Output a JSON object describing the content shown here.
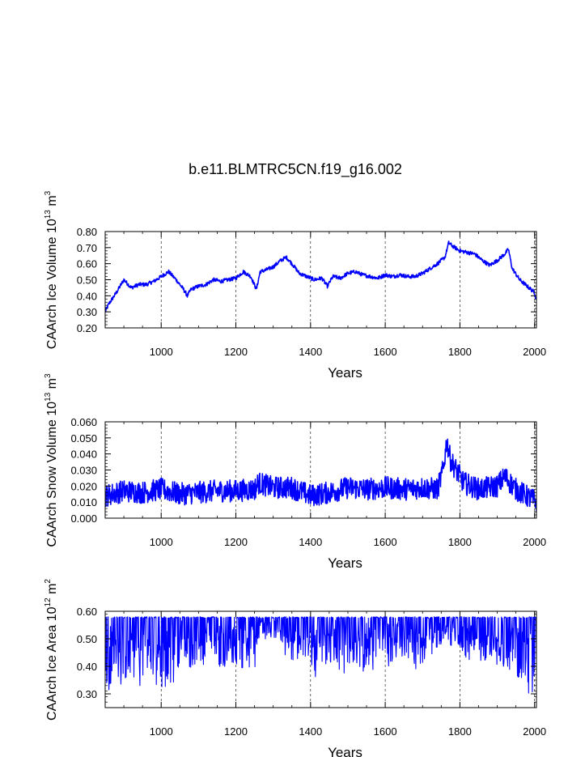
{
  "title": "b.e11.BLMTRC5CN.f19_g16.002",
  "colors": {
    "series": "#0000ff",
    "axis": "#000000",
    "grid": "#000000"
  },
  "chart_data": [
    {
      "type": "line",
      "title": "b.e11.BLMTRC5CN.f19_g16.002",
      "xlabel": "Years",
      "ylabel": {
        "text": "CAArch Ice Volume 10",
        "exponent": "13",
        "unit": " m",
        "unit_exponent": "3"
      },
      "xlim": [
        850,
        2005
      ],
      "ylim": [
        0.2,
        0.8
      ],
      "xticks": [
        "1000",
        "1200",
        "1400",
        "1600",
        "1800",
        "2000"
      ],
      "xtick_values": [
        1000,
        1200,
        1400,
        1600,
        1800,
        2000
      ],
      "yticks": [
        "0.20",
        "0.30",
        "0.40",
        "0.50",
        "0.60",
        "0.70",
        "0.80"
      ],
      "ytick_values": [
        0.2,
        0.3,
        0.4,
        0.5,
        0.6,
        0.7,
        0.8
      ],
      "grid": "vertical dashed at major x ticks",
      "series": [
        {
          "name": "CAArch Ice Volume",
          "noise": 0.012,
          "x": [
            850,
            860,
            880,
            900,
            920,
            940,
            960,
            980,
            1000,
            1020,
            1040,
            1060,
            1070,
            1080,
            1100,
            1120,
            1140,
            1160,
            1180,
            1200,
            1220,
            1240,
            1255,
            1265,
            1280,
            1300,
            1320,
            1335,
            1350,
            1370,
            1390,
            1410,
            1430,
            1445,
            1460,
            1480,
            1500,
            1520,
            1540,
            1560,
            1580,
            1600,
            1620,
            1640,
            1660,
            1680,
            1700,
            1720,
            1740,
            1760,
            1770,
            1780,
            1800,
            1820,
            1840,
            1860,
            1880,
            1900,
            1920,
            1930,
            1940,
            1960,
            1980,
            2000,
            2005
          ],
          "values": [
            0.3,
            0.35,
            0.42,
            0.5,
            0.45,
            0.47,
            0.47,
            0.49,
            0.52,
            0.55,
            0.5,
            0.44,
            0.4,
            0.44,
            0.46,
            0.47,
            0.5,
            0.49,
            0.5,
            0.51,
            0.55,
            0.52,
            0.44,
            0.55,
            0.56,
            0.58,
            0.62,
            0.64,
            0.6,
            0.54,
            0.52,
            0.5,
            0.51,
            0.46,
            0.52,
            0.51,
            0.54,
            0.55,
            0.53,
            0.52,
            0.51,
            0.53,
            0.52,
            0.53,
            0.52,
            0.52,
            0.54,
            0.57,
            0.6,
            0.64,
            0.73,
            0.71,
            0.68,
            0.67,
            0.66,
            0.62,
            0.59,
            0.62,
            0.66,
            0.69,
            0.57,
            0.5,
            0.46,
            0.42,
            0.37
          ]
        }
      ]
    },
    {
      "type": "line",
      "title": "",
      "xlabel": "Years",
      "ylabel": {
        "text": "CAArch Snow Volume 10",
        "exponent": "13",
        "unit": " m",
        "unit_exponent": "3"
      },
      "xlim": [
        850,
        2005
      ],
      "ylim": [
        0.0,
        0.06
      ],
      "xticks": [
        "1000",
        "1200",
        "1400",
        "1600",
        "1800",
        "2000"
      ],
      "xtick_values": [
        1000,
        1200,
        1400,
        1600,
        1800,
        2000
      ],
      "yticks": [
        "0.000",
        "0.010",
        "0.020",
        "0.030",
        "0.040",
        "0.050",
        "0.060"
      ],
      "ytick_values": [
        0.0,
        0.01,
        0.02,
        0.03,
        0.04,
        0.05,
        0.06
      ],
      "grid": "vertical dashed at major x ticks",
      "series": [
        {
          "name": "CAArch Snow Volume",
          "noise": 0.007,
          "x": [
            850,
            900,
            950,
            1000,
            1050,
            1100,
            1150,
            1200,
            1250,
            1260,
            1300,
            1350,
            1400,
            1450,
            1500,
            1550,
            1600,
            1650,
            1700,
            1740,
            1755,
            1765,
            1775,
            1790,
            1810,
            1850,
            1900,
            1920,
            1950,
            2005
          ],
          "values": [
            0.014,
            0.017,
            0.016,
            0.018,
            0.015,
            0.016,
            0.017,
            0.017,
            0.018,
            0.022,
            0.019,
            0.019,
            0.014,
            0.016,
            0.019,
            0.018,
            0.019,
            0.018,
            0.019,
            0.018,
            0.03,
            0.048,
            0.036,
            0.03,
            0.022,
            0.018,
            0.02,
            0.026,
            0.018,
            0.01
          ]
        }
      ]
    },
    {
      "type": "line",
      "title": "",
      "xlabel": "Years",
      "ylabel": {
        "text": "CAArch Ice Area 10",
        "exponent": "12",
        "unit": " m",
        "unit_exponent": "2"
      },
      "xlim": [
        850,
        2005
      ],
      "ylim": [
        0.25,
        0.6
      ],
      "xticks": [
        "1000",
        "1200",
        "1400",
        "1600",
        "1800",
        "2000"
      ],
      "xtick_values": [
        1000,
        1200,
        1400,
        1600,
        1800,
        2000
      ],
      "yticks": [
        "0.30",
        "0.40",
        "0.50",
        "0.60"
      ],
      "ytick_values": [
        0.3,
        0.4,
        0.5,
        0.6
      ],
      "grid": "vertical dashed at major x ticks",
      "series": [
        {
          "name": "CAArch Ice Area",
          "cap": 0.58,
          "noise": 0.07,
          "x": [
            850,
            900,
            1000,
            1050,
            1100,
            1200,
            1255,
            1265,
            1300,
            1400,
            1500,
            1600,
            1700,
            1750,
            1765,
            1800,
            1900,
            1950,
            2005
          ],
          "values": [
            0.5,
            0.51,
            0.5,
            0.5,
            0.52,
            0.53,
            0.53,
            0.58,
            0.56,
            0.52,
            0.52,
            0.53,
            0.53,
            0.56,
            0.57,
            0.55,
            0.53,
            0.5,
            0.48
          ]
        }
      ]
    }
  ]
}
